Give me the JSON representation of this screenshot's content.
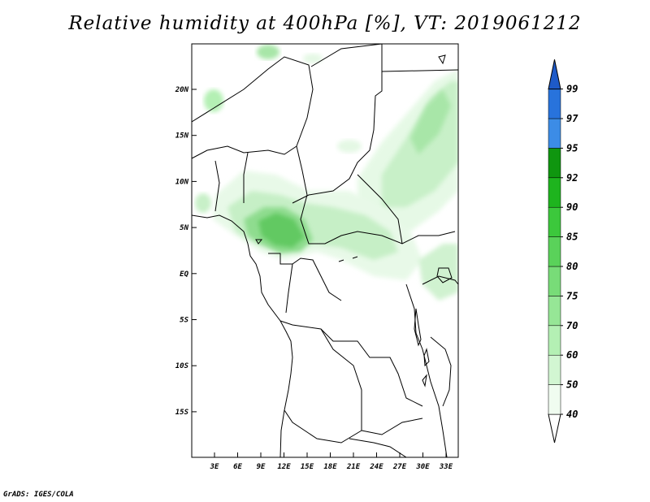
{
  "title": "Relative humidity at 400hPa [%], VT: 2019061212",
  "credit": "GrADS: IGES/COLA",
  "lat_labels": [
    "20N",
    "15N",
    "10N",
    "5N",
    "EQ",
    "5S",
    "10S",
    "15S"
  ],
  "lon_labels": [
    "3E",
    "6E",
    "9E",
    "12E",
    "15E",
    "18E",
    "21E",
    "24E",
    "27E",
    "30E",
    "33E"
  ],
  "colorbar": {
    "labels": [
      "40",
      "50",
      "60",
      "70",
      "75",
      "80",
      "85",
      "90",
      "92",
      "95",
      "97",
      "99"
    ],
    "colors": [
      "#f0fcf0",
      "#d2f6d2",
      "#b4f0b4",
      "#96e696",
      "#78dc78",
      "#5ad25a",
      "#3cc83c",
      "#1eb41e",
      "#0f960f",
      "#3c8ce6",
      "#2873dc",
      "#1e5ac8"
    ]
  }
}
